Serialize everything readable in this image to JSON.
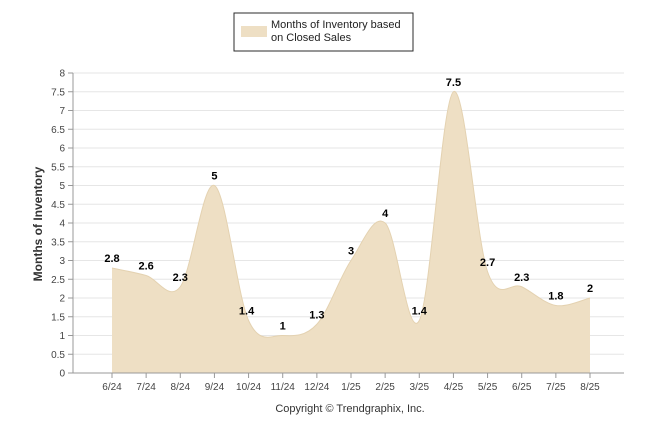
{
  "chart_data": {
    "type": "area",
    "legend": {
      "position": "top-center",
      "entries": [
        {
          "lines": [
            "Months of Inventory based",
            "on Closed Sales"
          ],
          "color": "#eedfc4"
        }
      ]
    },
    "categories": [
      "6/24",
      "7/24",
      "8/24",
      "9/24",
      "10/24",
      "11/24",
      "12/24",
      "1/25",
      "2/25",
      "3/25",
      "4/25",
      "5/25",
      "6/25",
      "7/25",
      "8/25"
    ],
    "series": [
      {
        "values": [
          2.8,
          2.6,
          2.3,
          5,
          1.4,
          1,
          1.3,
          3,
          4,
          1.4,
          7.5,
          2.7,
          2.3,
          1.8,
          2
        ],
        "color": "#eedfc4"
      }
    ],
    "data_labels": [
      "2.8",
      "2.6",
      "2.3",
      "5",
      "1.4",
      "1",
      "1.3",
      "3",
      "4",
      "1.4",
      "7.5",
      "2.7",
      "2.3",
      "1.8",
      "2"
    ],
    "ylabel": "Months of Inventory",
    "ylim": [
      0,
      8
    ],
    "yticks": [
      "0",
      "0.5",
      "1",
      "1.5",
      "2",
      "2.5",
      "3",
      "3.5",
      "4",
      "4.5",
      "5",
      "5.5",
      "6",
      "6.5",
      "7",
      "7.5",
      "8"
    ],
    "grid": true,
    "credit": "Copyright © Trendgraphix, Inc."
  }
}
